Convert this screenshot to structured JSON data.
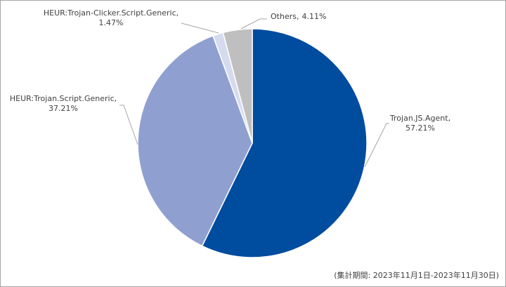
{
  "chart_data": {
    "type": "pie",
    "categories": [
      "Trojan.JS.Agent,",
      "HEUR:Trojan.Script.Generic,",
      "HEUR:Trojan-Clicker.Script.Generic,",
      "Others,"
    ],
    "values": [
      57.21,
      37.21,
      1.47,
      4.11
    ],
    "value_labels": [
      "57.21%",
      "37.21%",
      "1.47%",
      "4.11%"
    ],
    "colors": [
      "#004c9f",
      "#8fa0d0",
      "#d5dbef",
      "#bfbfbf"
    ],
    "note": "(集計期間: 2023年11月1日-2023年11月30日)"
  }
}
